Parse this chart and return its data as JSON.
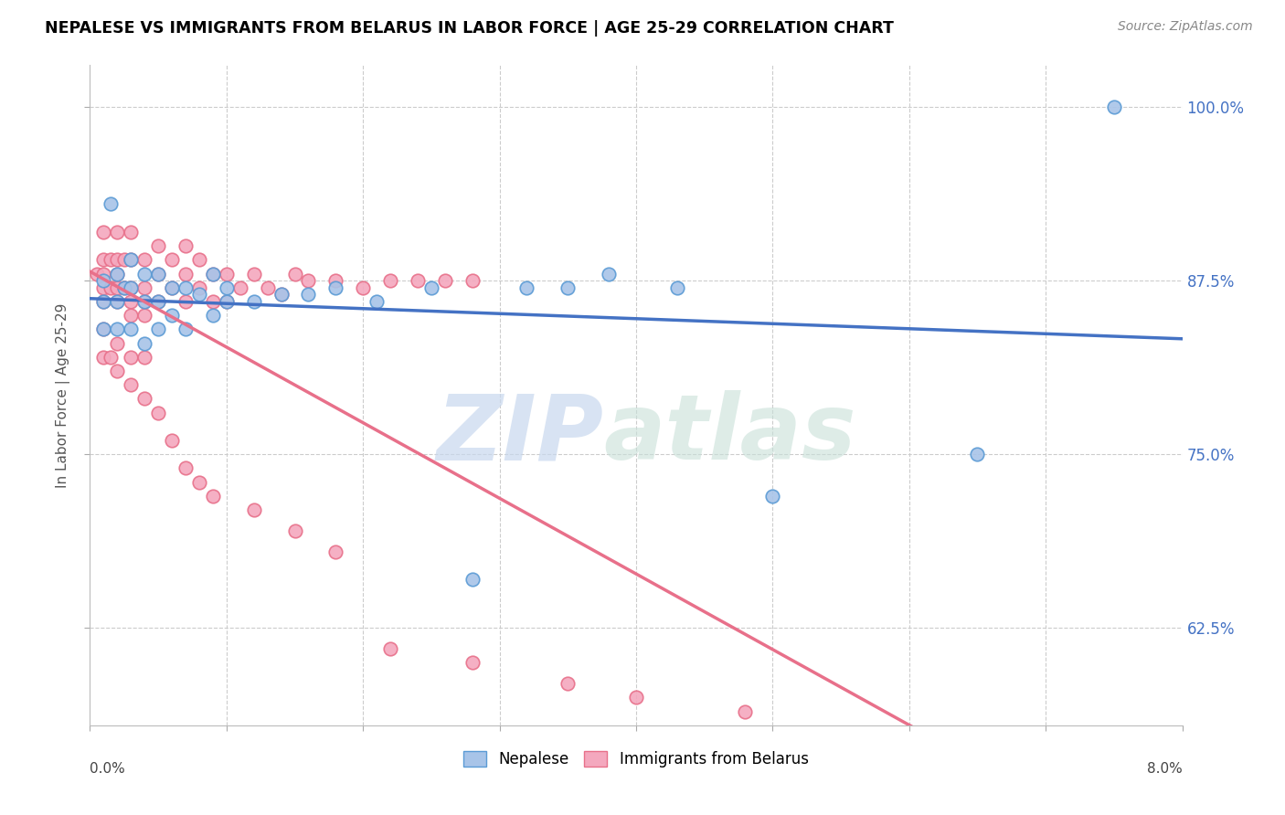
{
  "title": "NEPALESE VS IMMIGRANTS FROM BELARUS IN LABOR FORCE | AGE 25-29 CORRELATION CHART",
  "source": "Source: ZipAtlas.com",
  "ylabel": "In Labor Force | Age 25-29",
  "ytick_labels": [
    "62.5%",
    "75.0%",
    "87.5%",
    "100.0%"
  ],
  "ytick_values": [
    0.625,
    0.75,
    0.875,
    1.0
  ],
  "xlim": [
    0.0,
    0.08
  ],
  "ylim": [
    0.555,
    1.03
  ],
  "color_blue": "#a8c4e8",
  "color_pink": "#f4a8be",
  "color_blue_edge": "#5b9bd5",
  "color_pink_edge": "#e8708a",
  "color_blue_line": "#4472c4",
  "color_pink_line": "#e8708a",
  "color_text_blue": "#4472c4",
  "nepalese_x": [
    0.001,
    0.001,
    0.001,
    0.0015,
    0.002,
    0.002,
    0.002,
    0.0025,
    0.003,
    0.003,
    0.003,
    0.004,
    0.004,
    0.004,
    0.005,
    0.005,
    0.005,
    0.006,
    0.006,
    0.007,
    0.007,
    0.008,
    0.009,
    0.009,
    0.01,
    0.01,
    0.012,
    0.014,
    0.016,
    0.018,
    0.021,
    0.025,
    0.028,
    0.032,
    0.035,
    0.038,
    0.043,
    0.05,
    0.065,
    0.075
  ],
  "nepalese_y": [
    0.875,
    0.86,
    0.84,
    0.93,
    0.88,
    0.86,
    0.84,
    0.87,
    0.89,
    0.87,
    0.84,
    0.88,
    0.86,
    0.83,
    0.88,
    0.86,
    0.84,
    0.87,
    0.85,
    0.87,
    0.84,
    0.865,
    0.88,
    0.85,
    0.87,
    0.86,
    0.86,
    0.865,
    0.865,
    0.87,
    0.86,
    0.87,
    0.66,
    0.87,
    0.87,
    0.88,
    0.87,
    0.72,
    0.75,
    1.0
  ],
  "belarus_x": [
    0.0005,
    0.001,
    0.001,
    0.001,
    0.001,
    0.001,
    0.0015,
    0.0015,
    0.002,
    0.002,
    0.002,
    0.002,
    0.002,
    0.0025,
    0.0025,
    0.003,
    0.003,
    0.003,
    0.003,
    0.003,
    0.004,
    0.004,
    0.004,
    0.004,
    0.005,
    0.005,
    0.005,
    0.006,
    0.006,
    0.007,
    0.007,
    0.007,
    0.008,
    0.008,
    0.009,
    0.009,
    0.01,
    0.01,
    0.011,
    0.012,
    0.013,
    0.014,
    0.015,
    0.016,
    0.018,
    0.02,
    0.022,
    0.024,
    0.026,
    0.028,
    0.001,
    0.001,
    0.0015,
    0.002,
    0.002,
    0.003,
    0.003,
    0.004,
    0.004,
    0.005,
    0.006,
    0.007,
    0.008,
    0.009,
    0.012,
    0.015,
    0.018,
    0.022,
    0.028,
    0.035,
    0.04,
    0.048
  ],
  "belarus_y": [
    0.88,
    0.91,
    0.89,
    0.88,
    0.87,
    0.86,
    0.89,
    0.87,
    0.91,
    0.89,
    0.88,
    0.87,
    0.86,
    0.89,
    0.87,
    0.91,
    0.89,
    0.87,
    0.86,
    0.85,
    0.89,
    0.87,
    0.86,
    0.85,
    0.9,
    0.88,
    0.86,
    0.89,
    0.87,
    0.9,
    0.88,
    0.86,
    0.89,
    0.87,
    0.88,
    0.86,
    0.88,
    0.86,
    0.87,
    0.88,
    0.87,
    0.865,
    0.88,
    0.875,
    0.875,
    0.87,
    0.875,
    0.875,
    0.875,
    0.875,
    0.84,
    0.82,
    0.82,
    0.83,
    0.81,
    0.82,
    0.8,
    0.82,
    0.79,
    0.78,
    0.76,
    0.74,
    0.73,
    0.72,
    0.71,
    0.695,
    0.68,
    0.61,
    0.6,
    0.585,
    0.575,
    0.565
  ]
}
